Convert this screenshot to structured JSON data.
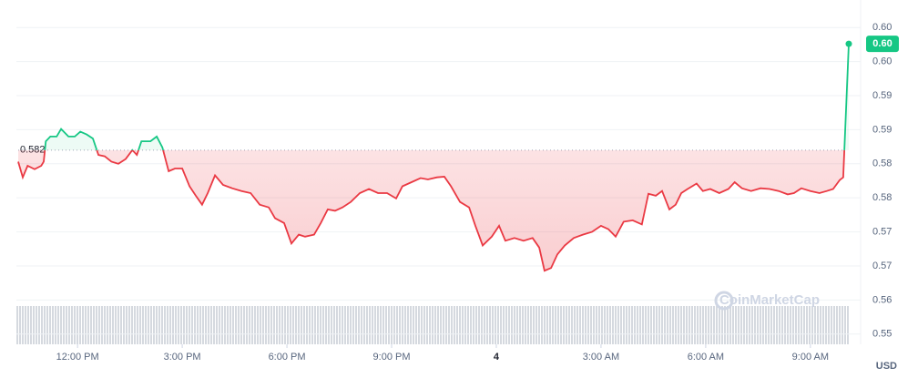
{
  "chart_data": {
    "type": "line",
    "x": [
      10.3,
      10.43,
      10.57,
      10.77,
      10.96,
      11.03,
      11.09,
      11.22,
      11.4,
      11.53,
      11.74,
      11.92,
      12.08,
      12.26,
      12.44,
      12.6,
      12.78,
      12.97,
      13.17,
      13.38,
      13.57,
      13.7,
      13.83,
      14.09,
      14.27,
      14.43,
      14.61,
      14.79,
      15.0,
      15.21,
      15.39,
      15.57,
      15.73,
      15.94,
      16.17,
      16.43,
      16.7,
      16.96,
      17.22,
      17.48,
      17.66,
      17.92,
      18.13,
      18.34,
      18.52,
      18.78,
      18.97,
      19.17,
      19.38,
      19.59,
      19.83,
      20.09,
      20.35,
      20.61,
      20.87,
      21.13,
      21.31,
      21.57,
      21.83,
      22.04,
      22.3,
      22.51,
      22.7,
      22.96,
      23.22,
      23.4,
      23.61,
      23.87,
      24.08,
      24.26,
      24.52,
      24.78,
      25.04,
      25.23,
      25.38,
      25.57,
      25.75,
      25.96,
      26.22,
      26.48,
      26.74,
      27.0,
      27.21,
      27.42,
      27.65,
      27.91,
      28.17,
      28.36,
      28.57,
      28.75,
      28.96,
      29.14,
      29.3,
      29.48,
      29.74,
      29.92,
      30.13,
      30.39,
      30.65,
      30.83,
      31.04,
      31.3,
      31.57,
      31.83,
      32.09,
      32.35,
      32.53,
      32.74,
      33.0,
      33.26,
      33.47,
      33.65,
      33.84,
      33.94,
      34.1
    ],
    "values": [
      0.5803,
      0.578,
      0.5797,
      0.5792,
      0.5797,
      0.5803,
      0.5833,
      0.584,
      0.584,
      0.5851,
      0.584,
      0.584,
      0.5847,
      0.5843,
      0.5837,
      0.5813,
      0.5811,
      0.5803,
      0.58,
      0.5807,
      0.582,
      0.5813,
      0.5833,
      0.5833,
      0.584,
      0.5824,
      0.5789,
      0.5793,
      0.5793,
      0.5767,
      0.5753,
      0.574,
      0.5757,
      0.5783,
      0.5769,
      0.5764,
      0.576,
      0.5757,
      0.574,
      0.5736,
      0.572,
      0.5713,
      0.5683,
      0.5696,
      0.5693,
      0.5696,
      0.5713,
      0.5733,
      0.5731,
      0.5736,
      0.5744,
      0.5757,
      0.5763,
      0.5757,
      0.5757,
      0.5749,
      0.5767,
      0.5773,
      0.5779,
      0.5777,
      0.578,
      0.5781,
      0.5767,
      0.5744,
      0.5736,
      0.5709,
      0.568,
      0.5693,
      0.5709,
      0.5687,
      0.5691,
      0.5687,
      0.5691,
      0.5677,
      0.5643,
      0.5647,
      0.5667,
      0.568,
      0.5691,
      0.5696,
      0.57,
      0.5709,
      0.5704,
      0.5693,
      0.5715,
      0.5717,
      0.5711,
      0.5756,
      0.5753,
      0.576,
      0.5733,
      0.574,
      0.5757,
      0.5763,
      0.5771,
      0.576,
      0.5763,
      0.5757,
      0.5763,
      0.5773,
      0.5764,
      0.576,
      0.5764,
      0.5763,
      0.576,
      0.5755,
      0.5757,
      0.5764,
      0.576,
      0.5757,
      0.576,
      0.5763,
      0.5776,
      0.578,
      0.5976
    ],
    "color_up": "#16c784",
    "color_down": "#ea3943",
    "baseline": {
      "value": 0.582,
      "label": "0.582"
    },
    "current_price": {
      "value": 0.5976,
      "label": "0.60"
    },
    "xlim": [
      10.3,
      34.1
    ],
    "ylim": [
      0.5535,
      0.6027
    ],
    "xticks": [
      {
        "value": 12,
        "label": "12:00 PM"
      },
      {
        "value": 15,
        "label": "3:00 PM"
      },
      {
        "value": 18,
        "label": "6:00 PM"
      },
      {
        "value": 21,
        "label": "9:00 PM"
      },
      {
        "value": 24,
        "label": "4"
      },
      {
        "value": 27,
        "label": "3:00 AM"
      },
      {
        "value": 30,
        "label": "6:00 AM"
      },
      {
        "value": 33,
        "label": "9:00 AM"
      }
    ],
    "yticks": [
      {
        "value": 0.6,
        "label": "0.60"
      },
      {
        "value": 0.595,
        "label": "0.60"
      },
      {
        "value": 0.59,
        "label": "0.59"
      },
      {
        "value": 0.585,
        "label": "0.59"
      },
      {
        "value": 0.58,
        "label": "0.58"
      },
      {
        "value": 0.575,
        "label": "0.58"
      },
      {
        "value": 0.57,
        "label": "0.57"
      },
      {
        "value": 0.565,
        "label": "0.57"
      },
      {
        "value": 0.56,
        "label": "0.56"
      },
      {
        "value": 0.555,
        "label": "0.55"
      }
    ],
    "currency": "USD",
    "watermark": "CoinMarketCap",
    "grid": true
  }
}
